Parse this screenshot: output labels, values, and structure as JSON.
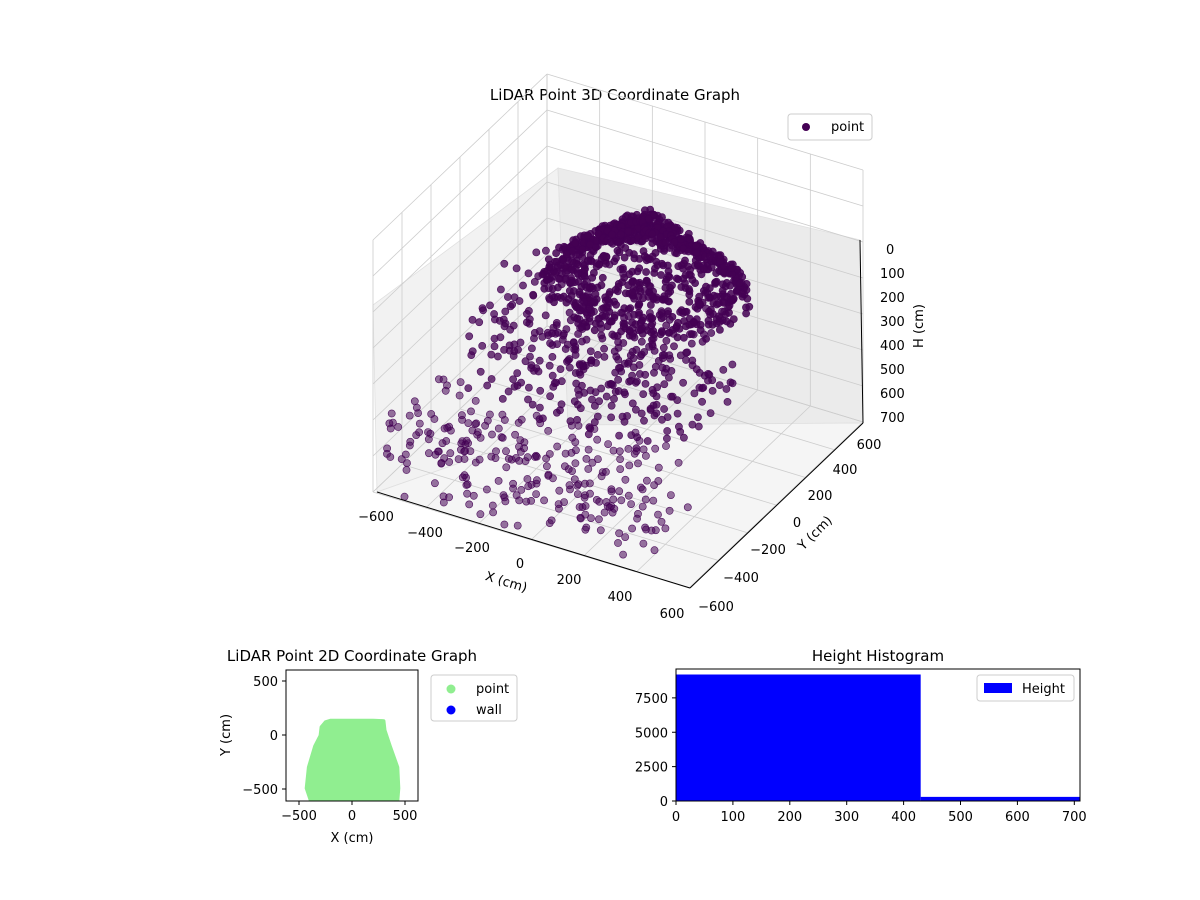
{
  "chart_data": [
    {
      "type": "scatter",
      "title": "LiDAR Point 3D Coordinate Graph",
      "projection": "3d",
      "xlabel": "X (cm)",
      "ylabel": "Y (cm)",
      "zlabel": "H (cm)",
      "xlim": [
        -600,
        600
      ],
      "ylim": [
        -600,
        600
      ],
      "zlim": [
        0,
        700
      ],
      "z_axis_inverted": true,
      "xticks": [
        "−600",
        "−400",
        "−200",
        "0",
        "200",
        "400",
        "600"
      ],
      "yticks": [
        "−600",
        "−400",
        "−200",
        "0",
        "200",
        "400",
        "600"
      ],
      "zticks": [
        "0",
        "100",
        "200",
        "300",
        "400",
        "500",
        "600",
        "700"
      ],
      "grid": true,
      "legend": {
        "entries": [
          "point"
        ],
        "location": "upper-right"
      },
      "series": [
        {
          "name": "point",
          "color": "#440154",
          "description_points": [
            {
              "x": -100,
              "y": 100,
              "h": 200
            },
            {
              "x": 0,
              "y": 150,
              "h": 150
            },
            {
              "x": 100,
              "y": 100,
              "h": 300
            },
            {
              "x": -200,
              "y": -100,
              "h": 450
            },
            {
              "x": 0,
              "y": -200,
              "h": 500
            },
            {
              "x": 200,
              "y": -100,
              "h": 480
            },
            {
              "x": -400,
              "y": -300,
              "h": 650
            },
            {
              "x": 0,
              "y": -500,
              "h": 700
            },
            {
              "x": 300,
              "y": -400,
              "h": 650
            }
          ]
        }
      ]
    },
    {
      "type": "scatter",
      "title": "LiDAR Point 2D Coordinate Graph",
      "xlabel": "X (cm)",
      "ylabel": "Y (cm)",
      "xlim": [
        -620,
        620
      ],
      "ylim": [
        -620,
        620
      ],
      "xticks": [
        "−500",
        "0",
        "500"
      ],
      "yticks": [
        "500",
        "0",
        "−500"
      ],
      "legend": {
        "entries": [
          "point",
          "wall"
        ],
        "location": "outside-right"
      },
      "series": [
        {
          "name": "point",
          "color": "#90ee90",
          "footprint_outline": [
            [
              -390,
              -620
            ],
            [
              -430,
              -500
            ],
            [
              -410,
              -300
            ],
            [
              -350,
              -100
            ],
            [
              -300,
              0
            ],
            [
              -290,
              80
            ],
            [
              -250,
              130
            ],
            [
              -200,
              145
            ],
            [
              200,
              145
            ],
            [
              300,
              140
            ],
            [
              310,
              50
            ],
            [
              360,
              -100
            ],
            [
              430,
              -300
            ],
            [
              440,
              -500
            ],
            [
              430,
              -620
            ]
          ]
        },
        {
          "name": "wall",
          "color": "#0000ff",
          "values": []
        }
      ]
    },
    {
      "type": "bar",
      "title": "Height Histogram",
      "xlim": [
        0,
        710
      ],
      "ylim": [
        0,
        9600
      ],
      "xticks": [
        "0",
        "100",
        "200",
        "300",
        "400",
        "500",
        "600",
        "700"
      ],
      "yticks": [
        "0",
        "2500",
        "5000",
        "7500"
      ],
      "legend": {
        "entries": [
          "Height"
        ],
        "location": "upper-right"
      },
      "series": [
        {
          "name": "Height",
          "color": "#0000ff",
          "bins": [
            {
              "from": 0,
              "to": 430,
              "count": 9200
            },
            {
              "from": 430,
              "to": 710,
              "count": 300
            }
          ]
        }
      ]
    }
  ]
}
